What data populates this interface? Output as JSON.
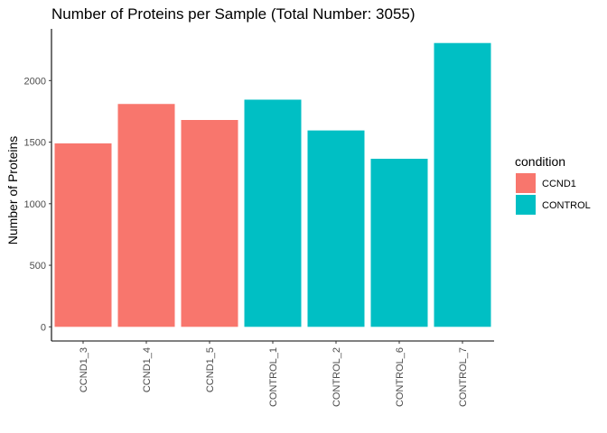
{
  "chart_data": {
    "type": "bar",
    "title": "Number of Proteins per Sample (Total Number: 3055)",
    "xlabel": "",
    "ylabel": "Number of Proteins",
    "categories": [
      "CCND1_3",
      "CCND1_4",
      "CCND1_5",
      "CONTROL_1",
      "CONTROL_2",
      "CONTROL_6",
      "CONTROL_7"
    ],
    "values": [
      1490,
      1810,
      1680,
      1845,
      1595,
      1365,
      2305
    ],
    "groups": [
      "CCND1",
      "CCND1",
      "CCND1",
      "CONTROL",
      "CONTROL",
      "CONTROL",
      "CONTROL"
    ],
    "ylim": [
      -115,
      2420
    ],
    "yticks": [
      0,
      500,
      1000,
      1500,
      2000
    ],
    "grid": false,
    "legend": {
      "title": "condition",
      "position": "right",
      "items": [
        {
          "label": "CCND1",
          "color": "#F8766D"
        },
        {
          "label": "CONTROL",
          "color": "#00BFC4"
        }
      ]
    },
    "colors": {
      "CCND1": "#F8766D",
      "CONTROL": "#00BFC4"
    }
  }
}
